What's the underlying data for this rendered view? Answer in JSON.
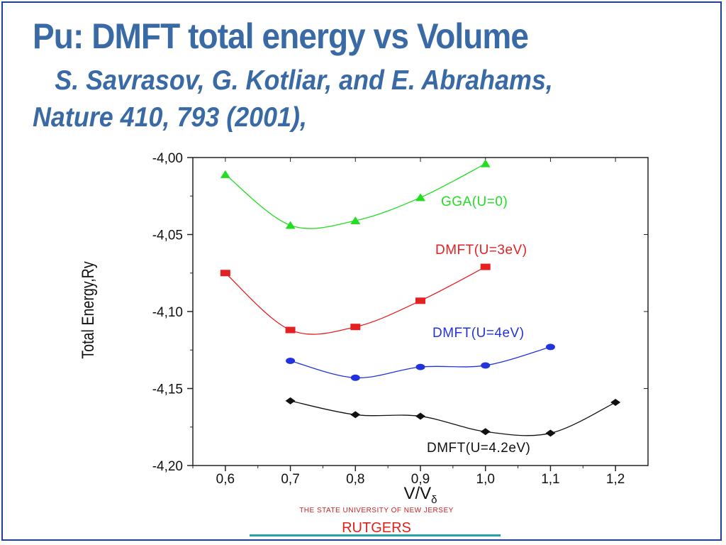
{
  "slide": {
    "title": "Pu: DMFT total energy vs Volume",
    "subtitle_line1": "S. Savrasov, G. Kotliar, and E. Abrahams,",
    "subtitle_line2": "Nature 410, 793 (2001),",
    "footer_university": "THE STATE UNIVERSITY OF NEW JERSEY",
    "footer_name": "RUTGERS"
  },
  "chart_data": {
    "type": "line",
    "title": "",
    "xlabel": "V/V",
    "xlabel_sub": "δ",
    "ylabel": "Total Energy,Ry",
    "xlim": [
      0.55,
      1.25
    ],
    "ylim": [
      -4.2,
      -4.0
    ],
    "x_ticks": [
      0.6,
      0.7,
      0.8,
      0.9,
      1.0,
      1.1,
      1.2
    ],
    "x_tick_labels": [
      "0,6",
      "0,7",
      "0,8",
      "0,9",
      "1,0",
      "1,1",
      "1,2"
    ],
    "y_ticks": [
      -4.0,
      -4.05,
      -4.1,
      -4.15,
      -4.2
    ],
    "y_tick_labels": [
      "-4,00",
      "-4,05",
      "-4,10",
      "-4,15",
      "-4,20"
    ],
    "grid": false,
    "series": [
      {
        "name": "GGA(U=0)",
        "color": "#22dd22",
        "marker": "triangle",
        "x": [
          0.6,
          0.7,
          0.8,
          0.9,
          1.0
        ],
        "y": [
          -4.011,
          -4.044,
          -4.041,
          -4.026,
          -4.004
        ]
      },
      {
        "name": "DMFT(U=3eV)",
        "color": "#e52020",
        "marker": "square",
        "x": [
          0.6,
          0.7,
          0.8,
          0.9,
          1.0
        ],
        "y": [
          -4.075,
          -4.112,
          -4.11,
          -4.093,
          -4.071
        ]
      },
      {
        "name": "DMFT(U=4eV)",
        "color": "#2233dd",
        "marker": "circle",
        "x": [
          0.7,
          0.8,
          0.9,
          1.0,
          1.1
        ],
        "y": [
          -4.132,
          -4.143,
          -4.136,
          -4.135,
          -4.123
        ]
      },
      {
        "name": "DMFT(U=4.2eV)",
        "color": "#111111",
        "marker": "diamond",
        "x": [
          0.7,
          0.8,
          0.9,
          1.0,
          1.1,
          1.2
        ],
        "y": [
          -4.158,
          -4.167,
          -4.168,
          -4.178,
          -4.179,
          -4.159
        ]
      }
    ]
  }
}
